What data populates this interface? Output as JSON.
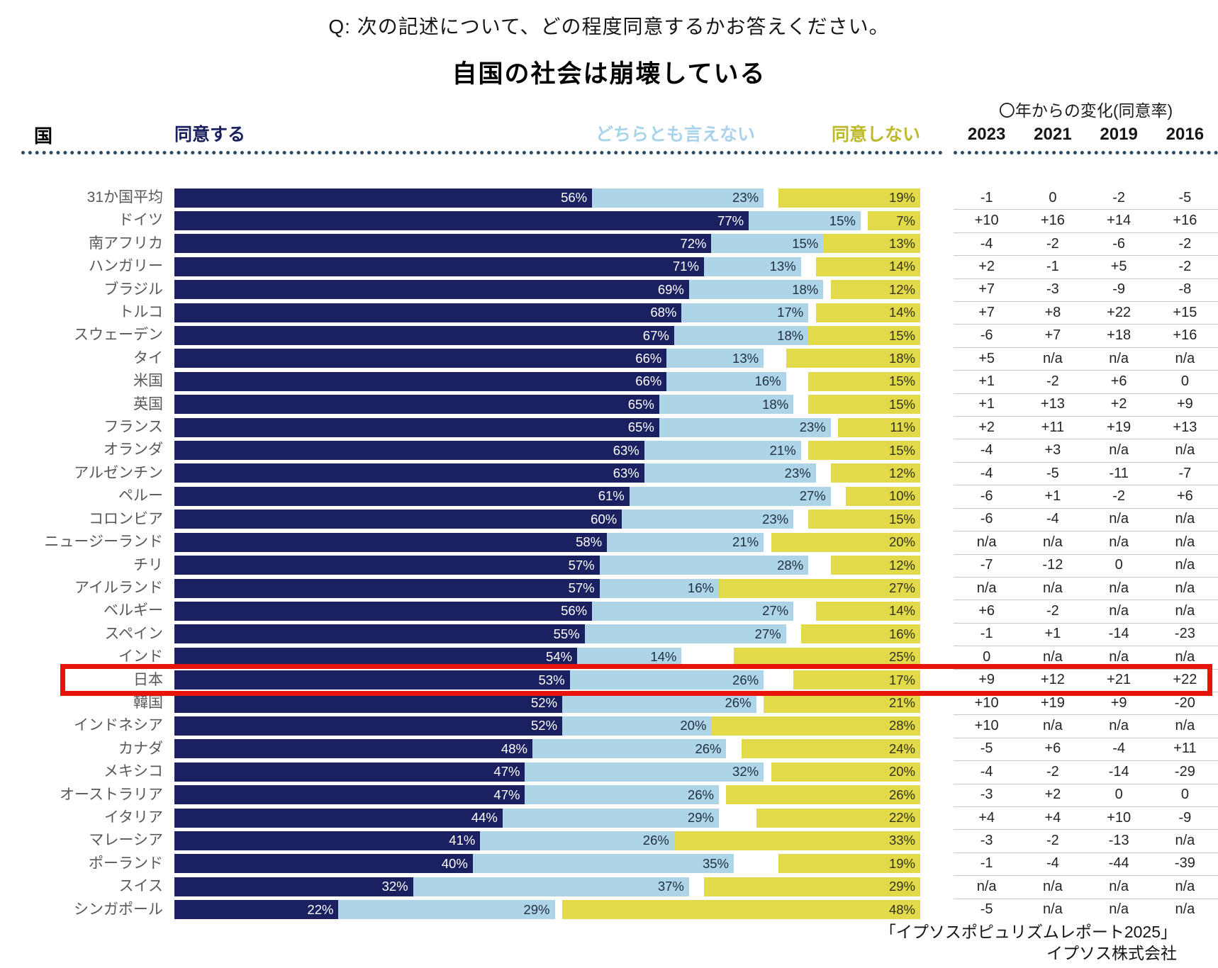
{
  "question": "Q: 次の記述について、どの程度同意するかお答えください。",
  "title": "自国の社会は崩壊している",
  "columns": {
    "country": "国",
    "agree": "同意する",
    "neutral": "どちらとも言えない",
    "disagree": "同意しない",
    "change_header": "〇年からの変化(同意率)"
  },
  "colors": {
    "agree_bar": "#1a2060",
    "neutral_bar": "#aed4e8",
    "disagree_bar": "#e3da4b",
    "neutral_header_text": "#a9d3e8",
    "disagree_header_text": "#bdb92a",
    "highlight_box": "#e81309",
    "country_label": "#58595b",
    "separator": "#c9c9c9"
  },
  "footer": {
    "line1": "「イプソスポピュリズムレポート2025」",
    "line2": "イプソス株式会社"
  },
  "chart_data": {
    "type": "bar",
    "orientation": "horizontal-stacked",
    "title": "自国の社会は崩壊している",
    "unit": "%",
    "axis_range": [
      0,
      100
    ],
    "highlighted_category": "日本",
    "categories": [
      "31か国平均",
      "ドイツ",
      "南アフリカ",
      "ハンガリー",
      "ブラジル",
      "トルコ",
      "スウェーデン",
      "タイ",
      "米国",
      "英国",
      "フランス",
      "オランダ",
      "アルゼンチン",
      "ペルー",
      "コロンビア",
      "ニュージーランド",
      "チリ",
      "アイルランド",
      "ベルギー",
      "スペイン",
      "インド",
      "日本",
      "韓国",
      "インドネシア",
      "カナダ",
      "メキシコ",
      "オーストラリア",
      "イタリア",
      "マレーシア",
      "ポーランド",
      "スイス",
      "シンガポール"
    ],
    "series": [
      {
        "name": "同意する",
        "values": [
          56,
          77,
          72,
          71,
          69,
          68,
          67,
          66,
          66,
          65,
          65,
          63,
          63,
          61,
          60,
          58,
          57,
          57,
          56,
          55,
          54,
          53,
          52,
          52,
          48,
          47,
          47,
          44,
          41,
          40,
          32,
          22
        ]
      },
      {
        "name": "どちらとも言えない",
        "values": [
          23,
          15,
          15,
          13,
          18,
          17,
          18,
          13,
          16,
          18,
          23,
          21,
          23,
          27,
          23,
          21,
          28,
          16,
          27,
          27,
          14,
          26,
          26,
          20,
          26,
          32,
          26,
          29,
          26,
          35,
          37,
          29
        ]
      },
      {
        "name": "同意しない",
        "values": [
          19,
          7,
          13,
          14,
          12,
          14,
          15,
          18,
          15,
          15,
          11,
          15,
          12,
          10,
          15,
          20,
          12,
          27,
          14,
          16,
          25,
          17,
          21,
          28,
          24,
          20,
          26,
          22,
          33,
          19,
          29,
          48
        ]
      }
    ],
    "changes": [
      {
        "year": "2023",
        "values": [
          "-1",
          "+10",
          "-4",
          "+2",
          "+7",
          "+7",
          "-6",
          "+5",
          "+1",
          "+1",
          "+2",
          "-4",
          "-4",
          "-6",
          "-6",
          "n/a",
          "-7",
          "n/a",
          "+6",
          "-1",
          "0",
          "+9",
          "+10",
          "+10",
          "-5",
          "-4",
          "-3",
          "+4",
          "-3",
          "-1",
          "n/a",
          "-5"
        ]
      },
      {
        "year": "2021",
        "values": [
          "0",
          "+16",
          "-2",
          "-1",
          "-3",
          "+8",
          "+7",
          "n/a",
          "-2",
          "+13",
          "+11",
          "+3",
          "-5",
          "+1",
          "-4",
          "n/a",
          "-12",
          "n/a",
          "-2",
          "+1",
          "n/a",
          "+12",
          "+19",
          "n/a",
          "+6",
          "-2",
          "+2",
          "+4",
          "-2",
          "-4",
          "n/a",
          "n/a"
        ]
      },
      {
        "year": "2019",
        "values": [
          "-2",
          "+14",
          "-6",
          "+5",
          "-9",
          "+22",
          "+18",
          "n/a",
          "+6",
          "+2",
          "+19",
          "n/a",
          "-11",
          "-2",
          "n/a",
          "n/a",
          "0",
          "n/a",
          "n/a",
          "-14",
          "n/a",
          "+21",
          "+9",
          "n/a",
          "-4",
          "-14",
          "0",
          "+10",
          "-13",
          "-44",
          "n/a",
          "n/a"
        ]
      },
      {
        "year": "2016",
        "values": [
          "-5",
          "+16",
          "-2",
          "-2",
          "-8",
          "+15",
          "+16",
          "n/a",
          "0",
          "+9",
          "+13",
          "n/a",
          "-7",
          "+6",
          "n/a",
          "n/a",
          "n/a",
          "n/a",
          "n/a",
          "-23",
          "n/a",
          "+22",
          "-20",
          "n/a",
          "+11",
          "-29",
          "0",
          "-9",
          "n/a",
          "-39",
          "n/a",
          "n/a"
        ]
      }
    ]
  }
}
